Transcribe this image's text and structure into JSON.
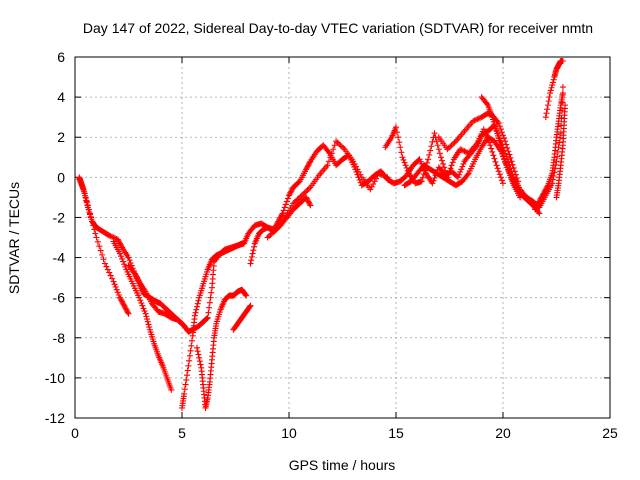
{
  "chart_data": {
    "type": "scatter",
    "title": "Day 147 of 2022, Sidereal Day-to-day VTEC variation (SDTVAR) for receiver nmtn",
    "xlabel": "GPS time / hours",
    "ylabel": "SDTVAR / TECUs",
    "xlim": [
      0,
      25
    ],
    "ylim": [
      -12,
      6
    ],
    "xticks": [
      0,
      5,
      10,
      15,
      20,
      25
    ],
    "yticks": [
      -12,
      -10,
      -8,
      -6,
      -4,
      -2,
      0,
      2,
      4,
      6
    ],
    "grid": true,
    "legend": "none",
    "marker": "plus",
    "color": "#ff0000",
    "series": [
      {
        "x": [
          0.2,
          0.3,
          0.45,
          0.6,
          0.8,
          1.0,
          1.3,
          1.6,
          2.0,
          2.2,
          2.5,
          2.8,
          3.0,
          3.2,
          3.5,
          3.8,
          4.0,
          4.3,
          4.6,
          4.9,
          5.1,
          5.3,
          5.5,
          5.8,
          6.0,
          6.2,
          6.4,
          6.5,
          6.8,
          7.0,
          7.3,
          7.6,
          7.9,
          8.1,
          8.4,
          8.7,
          9.0,
          9.3,
          9.5,
          9.7,
          10.0,
          10.2,
          10.5,
          10.8,
          11.0,
          11.3,
          11.6,
          11.9,
          12.2,
          12.5,
          12.8,
          13.1,
          13.4,
          13.7,
          14.0,
          14.3,
          14.6,
          14.9,
          15.2,
          15.5,
          15.8,
          16.1,
          16.4,
          16.7,
          17.0,
          17.3,
          17.6,
          17.9,
          18.2,
          18.5,
          18.8,
          19.0,
          19.3,
          19.6,
          19.9,
          20.2,
          20.5,
          20.8,
          21.1,
          21.4,
          21.7,
          22.0,
          22.3,
          22.5,
          22.7,
          22.8
        ],
        "y": [
          0.0,
          -0.3,
          -0.8,
          -1.5,
          -2.2,
          -2.5,
          -2.7,
          -2.9,
          -3.1,
          -3.5,
          -4.0,
          -4.8,
          -5.3,
          -5.8,
          -6.0,
          -6.2,
          -6.3,
          -6.6,
          -6.9,
          -7.2,
          -7.4,
          -7.7,
          -7.6,
          -7.4,
          -7.2,
          -7.0,
          -5.5,
          -4.2,
          -3.8,
          -3.6,
          -3.5,
          -3.4,
          -3.3,
          -2.8,
          -2.4,
          -2.3,
          -2.5,
          -2.6,
          -2.2,
          -1.8,
          -0.9,
          -0.5,
          -0.2,
          0.4,
          0.8,
          1.3,
          1.6,
          1.2,
          0.6,
          0.9,
          1.1,
          0.4,
          -0.4,
          -0.2,
          0.1,
          0.3,
          -0.1,
          -0.3,
          -0.2,
          0.1,
          0.6,
          0.9,
          0.2,
          -0.3,
          0.5,
          0.1,
          0.3,
          0.0,
          0.8,
          1.2,
          1.6,
          2.1,
          2.3,
          2.6,
          1.8,
          0.9,
          0.0,
          -0.6,
          -1.0,
          -1.2,
          -1.5,
          -0.9,
          -0.3,
          0.8,
          2.2,
          4.5
        ]
      },
      {
        "x": [
          0.2,
          0.4,
          0.7,
          1.0,
          1.4,
          1.8,
          2.1,
          2.3,
          2.5
        ],
        "y": [
          -0.1,
          -0.6,
          -1.8,
          -3.0,
          -4.3,
          -5.2,
          -6.0,
          -6.4,
          -6.8
        ]
      },
      {
        "x": [
          1.8,
          2.1,
          2.4,
          2.7,
          3.0,
          3.3,
          3.5,
          3.7,
          3.9,
          4.1,
          4.3,
          4.5
        ],
        "y": [
          -3.2,
          -3.8,
          -4.6,
          -5.3,
          -6.0,
          -6.8,
          -7.6,
          -8.3,
          -8.9,
          -9.4,
          -10.0,
          -10.6
        ]
      },
      {
        "x": [
          2.5,
          2.8,
          3.0,
          3.3,
          3.6,
          3.9,
          4.2,
          4.5,
          4.8,
          5.0
        ],
        "y": [
          -4.4,
          -4.8,
          -5.2,
          -5.7,
          -6.3,
          -6.7,
          -6.8,
          -7.0,
          -7.1,
          -7.3
        ]
      },
      {
        "x": [
          5.0,
          5.1,
          5.3,
          5.5,
          5.6,
          5.8,
          6.0,
          6.2,
          6.4,
          6.6,
          6.8,
          7.0,
          7.2,
          7.4,
          7.6,
          7.8
        ],
        "y": [
          -11.5,
          -10.8,
          -9.4,
          -7.9,
          -6.9,
          -6.0,
          -5.3,
          -4.6,
          -4.1,
          -3.9,
          -3.8,
          -3.7,
          -3.6,
          -3.5,
          -3.4,
          -3.3
        ]
      },
      {
        "x": [
          5.7,
          5.9,
          6.0,
          6.1,
          6.2,
          6.3,
          6.4,
          6.5,
          6.6,
          6.8,
          7.0,
          7.2,
          7.4,
          7.6,
          7.8,
          8.0
        ],
        "y": [
          -8.5,
          -9.5,
          -10.5,
          -11.5,
          -11.0,
          -10.2,
          -9.1,
          -8.0,
          -7.3,
          -6.6,
          -6.1,
          -5.9,
          -5.9,
          -5.7,
          -5.6,
          -5.9
        ]
      },
      {
        "x": [
          7.4,
          7.6,
          7.8,
          8.0,
          8.2
        ],
        "y": [
          -7.6,
          -7.3,
          -7.0,
          -6.7,
          -6.4
        ]
      },
      {
        "x": [
          8.2,
          8.4,
          8.6,
          8.8,
          9.0,
          9.3,
          9.6,
          9.9,
          10.2,
          10.5,
          10.8,
          11.0
        ],
        "y": [
          -4.3,
          -3.3,
          -2.8,
          -2.6,
          -2.5,
          -2.7,
          -2.4,
          -2.0,
          -1.6,
          -1.3,
          -1.0,
          -1.4
        ]
      },
      {
        "x": [
          9.0,
          9.4,
          9.8,
          10.2,
          10.6,
          11.0,
          11.4,
          11.8,
          12.2,
          12.6,
          13.0,
          13.4,
          13.8,
          14.2,
          14.6
        ],
        "y": [
          -3.0,
          -2.6,
          -2.0,
          -1.3,
          -0.9,
          -0.5,
          0.1,
          0.6,
          1.8,
          1.4,
          0.8,
          0.0,
          -0.6,
          0.2,
          0.0
        ]
      },
      {
        "x": [
          14.5,
          14.8,
          15.0,
          15.3,
          15.6,
          15.9,
          16.2,
          16.5,
          16.8,
          17.1,
          17.4,
          17.7,
          18.0,
          18.4,
          18.8,
          19.1,
          19.4,
          19.7,
          20.0
        ],
        "y": [
          1.5,
          2.0,
          2.5,
          1.0,
          0.2,
          -0.3,
          -0.2,
          0.9,
          2.2,
          1.0,
          0.0,
          0.9,
          1.4,
          1.2,
          1.7,
          2.4,
          1.6,
          0.6,
          -0.3
        ]
      },
      {
        "x": [
          15.4,
          15.7,
          16.0,
          16.3,
          16.6,
          16.9,
          17.2,
          17.5,
          17.8,
          18.1,
          18.4,
          18.7,
          19.0,
          19.3,
          19.6,
          19.9,
          20.2,
          20.5,
          20.8,
          21.1,
          21.4,
          21.7
        ],
        "y": [
          -0.4,
          -0.2,
          0.2,
          0.6,
          0.4,
          0.2,
          0.0,
          -0.2,
          -0.4,
          -0.2,
          0.2,
          0.9,
          1.5,
          2.0,
          1.8,
          1.3,
          0.5,
          -0.3,
          -0.8,
          -1.1,
          -1.4,
          -1.8
        ]
      },
      {
        "x": [
          17.0,
          17.4,
          17.8,
          18.2,
          18.6,
          19.0,
          19.3,
          19.5,
          19.8,
          20.1,
          20.4,
          20.7
        ],
        "y": [
          2.0,
          1.4,
          1.8,
          2.3,
          2.8,
          3.0,
          3.2,
          3.1,
          2.7,
          1.8,
          0.8,
          -0.2
        ]
      },
      {
        "x": [
          19.0,
          19.3,
          19.5,
          19.7,
          19.9,
          20.1,
          20.3,
          20.5,
          20.8
        ],
        "y": [
          4.0,
          3.6,
          3.0,
          2.3,
          1.6,
          0.8,
          0.2,
          -0.4,
          -1.0
        ]
      },
      {
        "x": [
          21.5,
          21.7,
          21.9,
          22.1,
          22.3,
          22.4,
          22.5,
          22.6,
          22.7,
          22.8
        ],
        "y": [
          -1.6,
          -1.2,
          -0.8,
          -0.4,
          0.2,
          1.0,
          2.0,
          2.8,
          3.6,
          4.2
        ]
      },
      {
        "x": [
          22.0,
          22.2,
          22.4,
          22.5,
          22.6,
          22.7,
          22.8
        ],
        "y": [
          3.0,
          4.2,
          5.0,
          5.4,
          5.6,
          5.8,
          5.8
        ]
      },
      {
        "x": [
          22.5,
          22.6,
          22.7,
          22.8,
          22.85,
          22.9
        ],
        "y": [
          -1.0,
          -0.3,
          0.6,
          1.6,
          2.6,
          3.6
        ]
      }
    ]
  }
}
